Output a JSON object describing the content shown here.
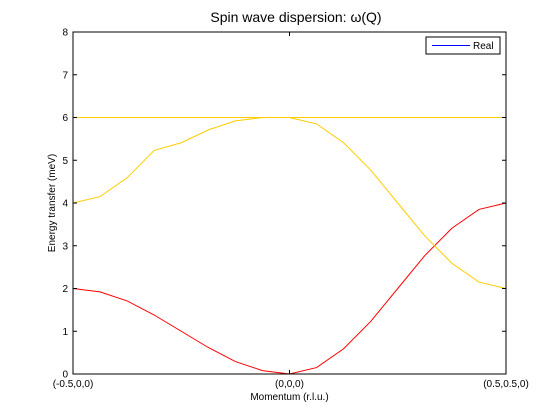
{
  "chart_data": {
    "type": "line",
    "title": "Spin wave dispersion: ω(Q)",
    "xlabel": "Momentum (r.l.u.)",
    "ylabel": "Energy transfer (meV)",
    "ylim": [
      0,
      8
    ],
    "yticks": [
      0,
      1,
      2,
      3,
      4,
      5,
      6,
      7,
      8
    ],
    "xlim": [
      0,
      2
    ],
    "xticks": [
      {
        "value": 0,
        "label": "(-0.5,0,0)"
      },
      {
        "value": 1,
        "label": "(0,0,0)"
      },
      {
        "value": 2,
        "label": "(0.5,0.5,0)"
      }
    ],
    "grid": false,
    "legend": {
      "placement": "top-right",
      "entries": [
        {
          "label": "Real",
          "color": "#0000ff"
        }
      ]
    },
    "series": [
      {
        "color": "#ff0000",
        "x": [
          0,
          0.125,
          0.25,
          0.375,
          0.5,
          0.625,
          0.75,
          0.875,
          1.0,
          1.125,
          1.25,
          1.375,
          1.5,
          1.625,
          1.75,
          1.875,
          2.0
        ],
        "y": [
          2.0,
          1.92,
          1.71,
          1.38,
          1.0,
          0.62,
          0.29,
          0.08,
          0.0,
          0.15,
          0.59,
          1.23,
          2.0,
          2.77,
          3.41,
          3.85,
          4.0
        ]
      },
      {
        "color": "#ffcc00",
        "x": [
          0,
          0.125,
          0.25,
          0.375,
          0.5,
          0.625,
          0.75,
          0.875,
          1.0,
          1.125,
          1.25,
          1.375,
          1.5,
          1.625,
          1.75,
          1.875,
          2.0
        ],
        "y": [
          4.0,
          4.15,
          4.59,
          5.23,
          5.41,
          5.71,
          5.92,
          6.0,
          6.0,
          5.85,
          5.41,
          4.77,
          4.0,
          3.23,
          2.59,
          2.15,
          2.0
        ]
      },
      {
        "color": "#ffcc00",
        "x": [
          0,
          2
        ],
        "y": [
          6.0,
          6.0
        ]
      }
    ]
  }
}
